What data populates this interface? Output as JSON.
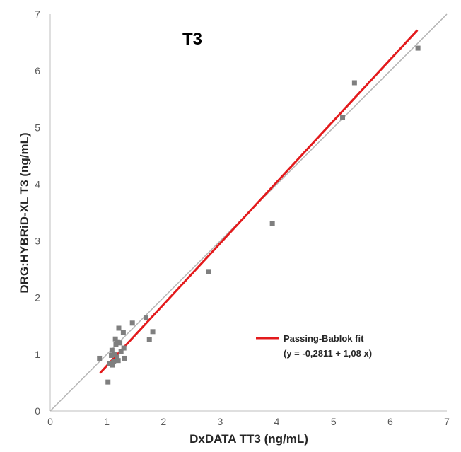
{
  "chart_data": {
    "type": "scatter",
    "title": "T3",
    "xlabel": "DxDATA TT3 (ng/mL)",
    "ylabel": "DRG:HYBRiD-XL T3 (ng/mL)",
    "xlim": [
      0,
      7
    ],
    "ylim": [
      0,
      7
    ],
    "x_ticks": [
      "0",
      "1",
      "2",
      "3",
      "4",
      "5",
      "6",
      "7"
    ],
    "y_ticks": [
      "0",
      "1",
      "2",
      "3",
      "4",
      "5",
      "6",
      "7"
    ],
    "grid": false,
    "legend_position": "bottom-right",
    "series": [
      {
        "kind": "scatter",
        "color": "#7f7f7f",
        "points": [
          {
            "x": 0.87,
            "y": 0.93
          },
          {
            "x": 1.02,
            "y": 0.51
          },
          {
            "x": 1.05,
            "y": 0.84
          },
          {
            "x": 1.08,
            "y": 0.98
          },
          {
            "x": 1.09,
            "y": 1.07
          },
          {
            "x": 1.1,
            "y": 0.81
          },
          {
            "x": 1.12,
            "y": 0.88
          },
          {
            "x": 1.13,
            "y": 1.0
          },
          {
            "x": 1.15,
            "y": 1.27
          },
          {
            "x": 1.16,
            "y": 1.17
          },
          {
            "x": 1.18,
            "y": 0.95
          },
          {
            "x": 1.19,
            "y": 1.22
          },
          {
            "x": 1.2,
            "y": 0.89
          },
          {
            "x": 1.21,
            "y": 1.46
          },
          {
            "x": 1.23,
            "y": 1.2
          },
          {
            "x": 1.25,
            "y": 1.05
          },
          {
            "x": 1.29,
            "y": 1.38
          },
          {
            "x": 1.3,
            "y": 1.11
          },
          {
            "x": 1.31,
            "y": 0.93
          },
          {
            "x": 1.45,
            "y": 1.55
          },
          {
            "x": 1.69,
            "y": 1.64
          },
          {
            "x": 1.75,
            "y": 1.26
          },
          {
            "x": 1.81,
            "y": 1.4
          },
          {
            "x": 2.8,
            "y": 2.46
          },
          {
            "x": 3.92,
            "y": 3.31
          },
          {
            "x": 5.16,
            "y": 5.18
          },
          {
            "x": 5.37,
            "y": 5.79
          },
          {
            "x": 6.49,
            "y": 6.4
          }
        ]
      },
      {
        "kind": "line",
        "name": "Passing-Bablok fit",
        "equation": "(y = -0,2811 + 1,08 x)",
        "color": "#e31a1c",
        "x": [
          0.88,
          6.48
        ],
        "y": [
          0.669,
          6.717
        ]
      },
      {
        "kind": "line",
        "color": "#b3b3b3",
        "x": [
          0,
          7
        ],
        "y": [
          0,
          7
        ]
      }
    ]
  }
}
